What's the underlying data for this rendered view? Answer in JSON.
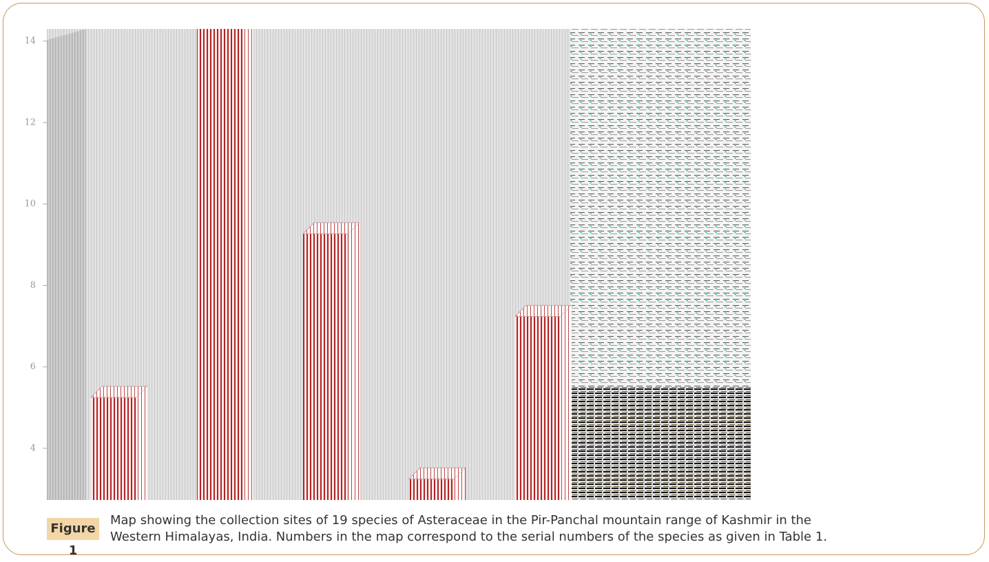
{
  "chart_data": {
    "type": "bar3d",
    "categories": [
      null,
      null,
      null,
      null,
      null
    ],
    "values": [
      5.25,
      14.3,
      9.27,
      3.25,
      7.24
    ],
    "color": "#b22222",
    "ylim": [
      2.73,
      14.3
    ],
    "yticks": [
      4,
      6,
      8,
      10,
      12,
      14
    ]
  },
  "figure": {
    "label": "Figure 1",
    "caption": [
      "Map showing the collection sites of 19 species of Asteraceae in the Pir-Panchal mountain range of Kashmir in the",
      "Western Himalayas, India. Numbers in the map correspond to the serial numbers of the species as given in Table 1."
    ]
  }
}
